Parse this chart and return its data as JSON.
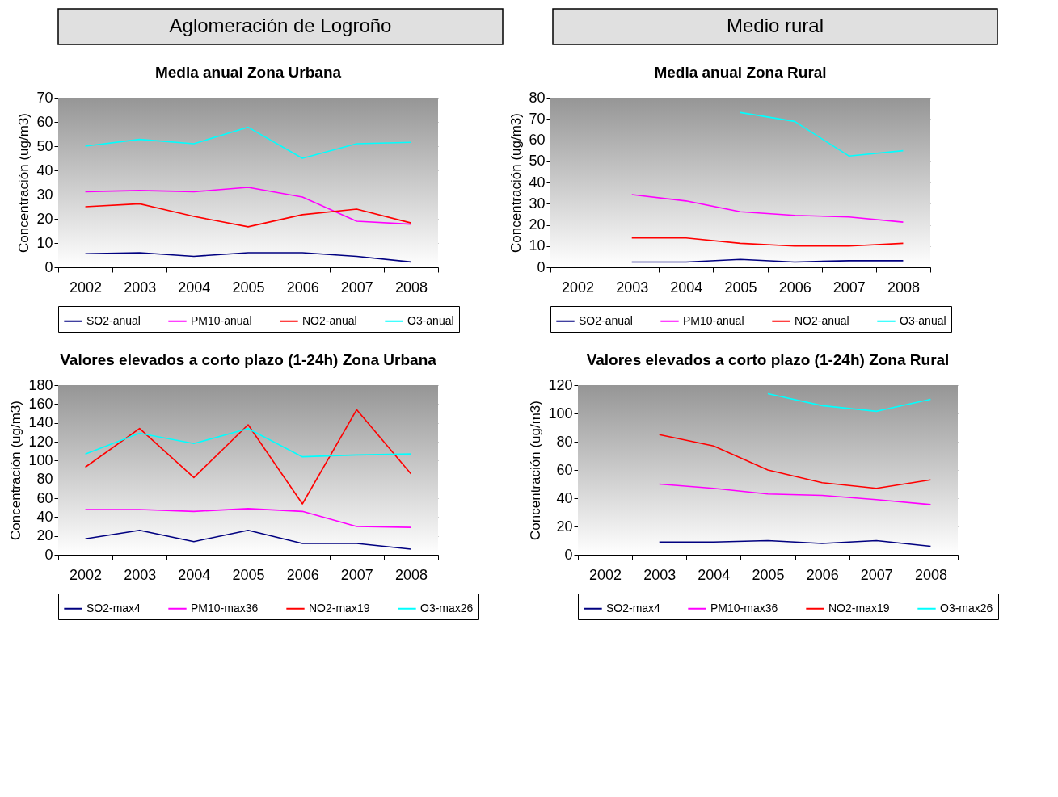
{
  "chart_data": [
    {
      "type": "other",
      "title": "Aglomeración de Logroño"
    },
    {
      "type": "other",
      "title": "Medio rural"
    },
    {
      "type": "line",
      "title": "Media anual Zona Urbana",
      "ylabel": "Concentración (ug/m3)",
      "categories": [
        "2002",
        "2003",
        "2004",
        "2005",
        "2006",
        "2007",
        "2008"
      ],
      "ylim": [
        0,
        70
      ],
      "yticks": [
        0,
        10,
        20,
        30,
        40,
        50,
        60,
        70
      ],
      "grid": "y",
      "legend": "bottom",
      "series": [
        {
          "name": "SO2-anual",
          "color": "#000080",
          "values": [
            5.6,
            6,
            4.5,
            6,
            6,
            4.5,
            2.2
          ]
        },
        {
          "name": "PM10-anual",
          "color": "#ff00ff",
          "values": [
            31.2,
            31.7,
            31.2,
            33,
            29,
            19,
            17.8
          ]
        },
        {
          "name": "NO2-anual",
          "color": "#ff0000",
          "values": [
            25,
            26.2,
            21,
            16.7,
            21.7,
            24,
            18.3
          ]
        },
        {
          "name": "O3-anual",
          "color": "#00ffff",
          "values": [
            50,
            52.8,
            51,
            57.8,
            45,
            51,
            51.6
          ]
        }
      ]
    },
    {
      "type": "line",
      "title": "Media anual Zona Rural",
      "ylabel": "Concentración (ug/m3)",
      "categories": [
        "2002",
        "2003",
        "2004",
        "2005",
        "2006",
        "2007",
        "2008"
      ],
      "ylim": [
        0,
        80
      ],
      "yticks": [
        0,
        10,
        20,
        30,
        40,
        50,
        60,
        70,
        80
      ],
      "grid": "y",
      "legend": "bottom",
      "series": [
        {
          "name": "SO2-anual",
          "color": "#000080",
          "values": [
            null,
            2.5,
            2.5,
            3.7,
            2.5,
            3.1,
            3.1
          ]
        },
        {
          "name": "PM10-anual",
          "color": "#ff00ff",
          "values": [
            null,
            34.3,
            31.3,
            26.2,
            24.5,
            23.7,
            21.3
          ]
        },
        {
          "name": "NO2-anual",
          "color": "#ff0000",
          "values": [
            null,
            13.8,
            13.8,
            11.3,
            10,
            10,
            11.3
          ]
        },
        {
          "name": "O3-anual",
          "color": "#00ffff",
          "values": [
            null,
            null,
            null,
            73,
            68.8,
            52.5,
            55
          ]
        }
      ]
    },
    {
      "type": "line",
      "title": "Valores elevados a corto plazo (1-24h) Zona Urbana",
      "ylabel": "Concentración (ug/m3)",
      "categories": [
        "2002",
        "2003",
        "2004",
        "2005",
        "2006",
        "2007",
        "2008"
      ],
      "ylim": [
        0,
        180
      ],
      "yticks": [
        0,
        20,
        40,
        60,
        80,
        100,
        120,
        140,
        160,
        180
      ],
      "grid": "y",
      "legend": "bottom",
      "series": [
        {
          "name": "SO2-max4",
          "color": "#000080",
          "values": [
            17,
            26,
            14,
            26,
            12,
            12,
            6
          ]
        },
        {
          "name": "PM10-max36",
          "color": "#ff00ff",
          "values": [
            48,
            48,
            46,
            49,
            46,
            30,
            29
          ]
        },
        {
          "name": "NO2-max19",
          "color": "#ff0000",
          "values": [
            93,
            134,
            82,
            138,
            54,
            154,
            86
          ]
        },
        {
          "name": "O3-max26",
          "color": "#00ffff",
          "values": [
            107,
            129,
            118,
            134,
            104,
            106,
            107
          ]
        }
      ]
    },
    {
      "type": "line",
      "title": "Valores elevados a corto plazo (1-24h) Zona Rural",
      "ylabel": "Concentración (ug/m3)",
      "categories": [
        "2002",
        "2003",
        "2004",
        "2005",
        "2006",
        "2007",
        "2008"
      ],
      "ylim": [
        0,
        120
      ],
      "yticks": [
        0,
        20,
        40,
        60,
        80,
        100,
        120
      ],
      "grid": "y",
      "legend": "bottom",
      "series": [
        {
          "name": "SO2-max4",
          "color": "#000080",
          "values": [
            null,
            9,
            9,
            10,
            8,
            10,
            6
          ]
        },
        {
          "name": "PM10-max36",
          "color": "#ff00ff",
          "values": [
            null,
            50,
            47,
            43,
            42,
            39,
            35.5
          ]
        },
        {
          "name": "NO2-max19",
          "color": "#ff0000",
          "values": [
            null,
            85,
            77,
            60,
            51,
            47,
            53
          ]
        },
        {
          "name": "O3-max26",
          "color": "#00ffff",
          "values": [
            null,
            null,
            null,
            114,
            105.5,
            101.5,
            110
          ]
        }
      ]
    }
  ]
}
